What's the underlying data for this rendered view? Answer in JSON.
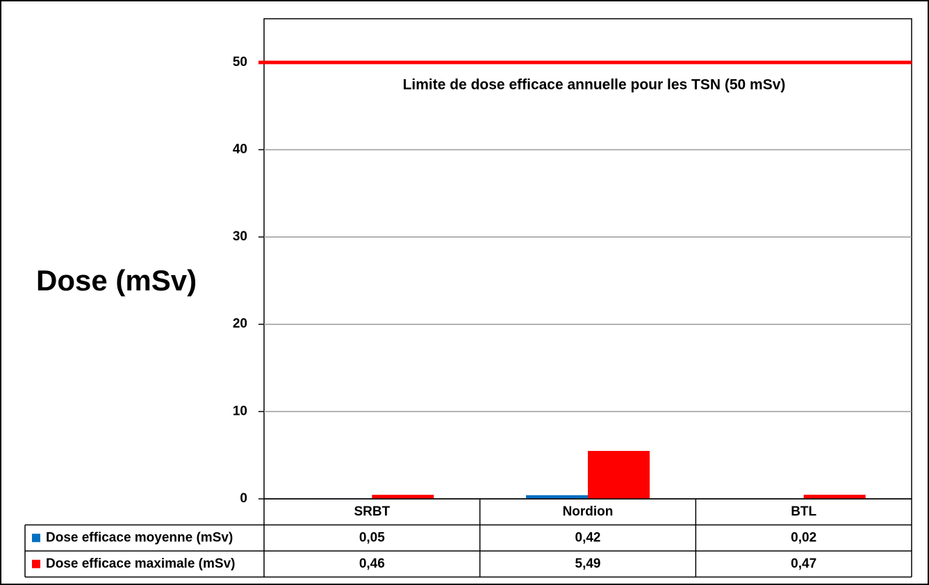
{
  "chart_data": {
    "type": "bar",
    "y_label": "Dose (mSv)",
    "categories": [
      "SRBT",
      "Nordion",
      "BTL"
    ],
    "series": [
      {
        "name": "Dose efficace moyenne (mSv)",
        "color": "#0070c0",
        "values": [
          0.05,
          0.42,
          0.02
        ],
        "value_labels": [
          "0,05",
          "0,42",
          "0,02"
        ]
      },
      {
        "name": "Dose efficace maximale (mSv)",
        "color": "#ff0000",
        "values": [
          0.46,
          5.49,
          0.47
        ],
        "value_labels": [
          "0,46",
          "5,49",
          "0,47"
        ]
      }
    ],
    "ylim": [
      0,
      55
    ],
    "yticks": [
      0,
      10,
      20,
      30,
      40,
      50
    ],
    "grid": true,
    "reference_line": {
      "value": 50,
      "color": "#ff0000",
      "label": "Limite de dose efficace annuelle pour les TSN (50 mSv)"
    }
  }
}
